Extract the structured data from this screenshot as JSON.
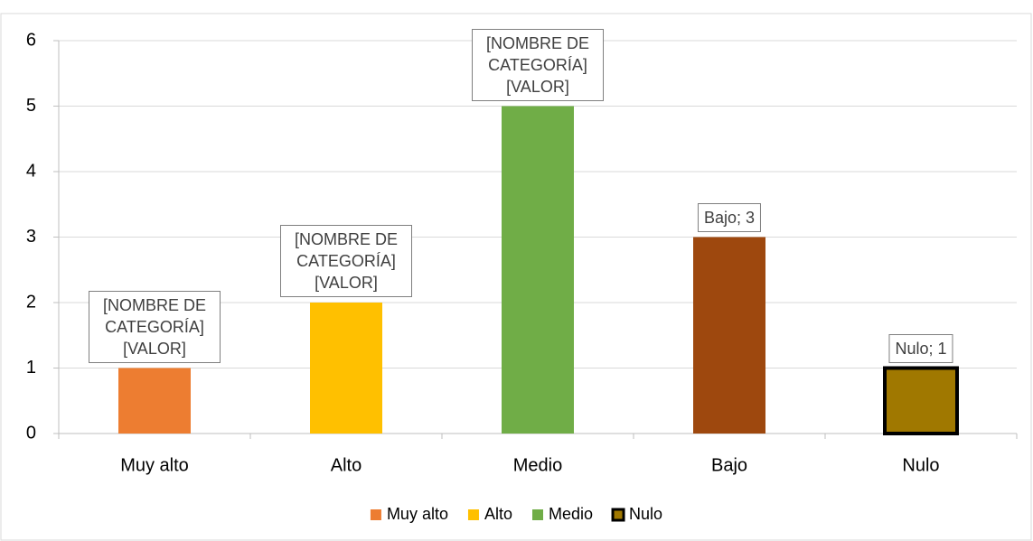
{
  "chart_data": {
    "type": "bar",
    "categories": [
      "Muy alto",
      "Alto",
      "Medio",
      "Bajo",
      "Nulo"
    ],
    "values": [
      1,
      2,
      5,
      3,
      1
    ],
    "value_labels": [
      "[NOMBRE DE CATEGORÍA] [VALOR]",
      "[NOMBRE DE CATEGORÍA] [VALOR]",
      "[NOMBRE DE CATEGORÍA] [VALOR]",
      "Bajo; 3",
      "Nulo; 1"
    ],
    "colors": [
      "#ed7d31",
      "#ffc000",
      "#70ad47",
      "#9e480e",
      "#a07800"
    ],
    "ylim": [
      0,
      6
    ],
    "yticks": [
      0,
      1,
      2,
      3,
      4,
      5,
      6
    ],
    "grid": true,
    "legend": [
      "Muy alto",
      "Alto",
      "Medio",
      "Nulo"
    ],
    "legend_position": "bottom",
    "highlighted": "Nulo"
  }
}
